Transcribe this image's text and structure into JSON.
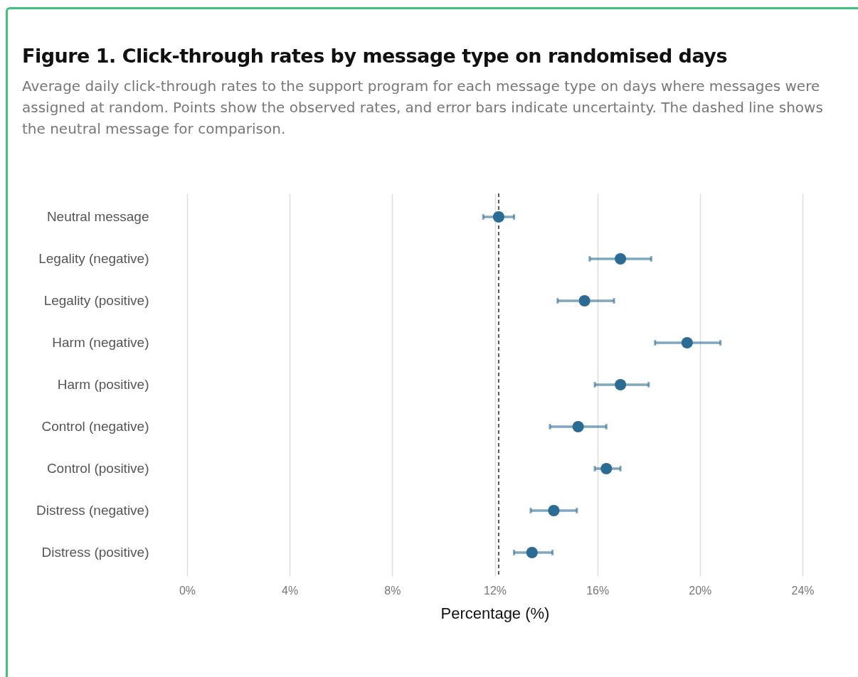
{
  "chart_data": {
    "type": "scatter",
    "title": "Figure 1. Click-through rates by message type on randomised days",
    "subtitle": "Average daily click-through rates to the support program for each message type on days where messages were assigned at random. Points show the observed rates, and error bars indicate uncertainty. The dashed line shows the neutral message for comparison.",
    "orientation": "horizontal",
    "xlabel": "Percentage (%)",
    "categories": [
      "Neutral message",
      "Legality (negative)",
      "Legality (positive)",
      "Harm (negative)",
      "Harm (positive)",
      "Control (negative)",
      "Control (positive)",
      "Distress (negative)",
      "Distress (positive)"
    ],
    "series": [
      {
        "color": "#2b6c94",
        "values": [
          12.15,
          16.9,
          15.5,
          19.5,
          16.9,
          15.25,
          16.35,
          14.3,
          13.45
        ],
        "errors": [
          [
            11.55,
            12.75
          ],
          [
            15.7,
            18.1
          ],
          [
            14.45,
            16.65
          ],
          [
            18.25,
            20.8
          ],
          [
            15.9,
            18.0
          ],
          [
            14.15,
            16.35
          ],
          [
            15.9,
            16.9
          ],
          [
            13.4,
            15.2
          ],
          [
            12.75,
            14.25
          ]
        ]
      }
    ],
    "xlim": [
      0,
      24
    ],
    "xticks": [
      {
        "value": 0,
        "label": "0%"
      },
      {
        "value": 4,
        "label": "4%"
      },
      {
        "value": 8,
        "label": "8%"
      },
      {
        "value": 12,
        "label": "12%"
      },
      {
        "value": 16,
        "label": "16%"
      },
      {
        "value": 20,
        "label": "20%"
      },
      {
        "value": 24,
        "label": "24%"
      }
    ],
    "grid": "x",
    "marker": "circle",
    "ref_lines": [
      {
        "axis": "x",
        "value": 12.15,
        "color": "#555555",
        "line_style": "dashed"
      }
    ]
  }
}
